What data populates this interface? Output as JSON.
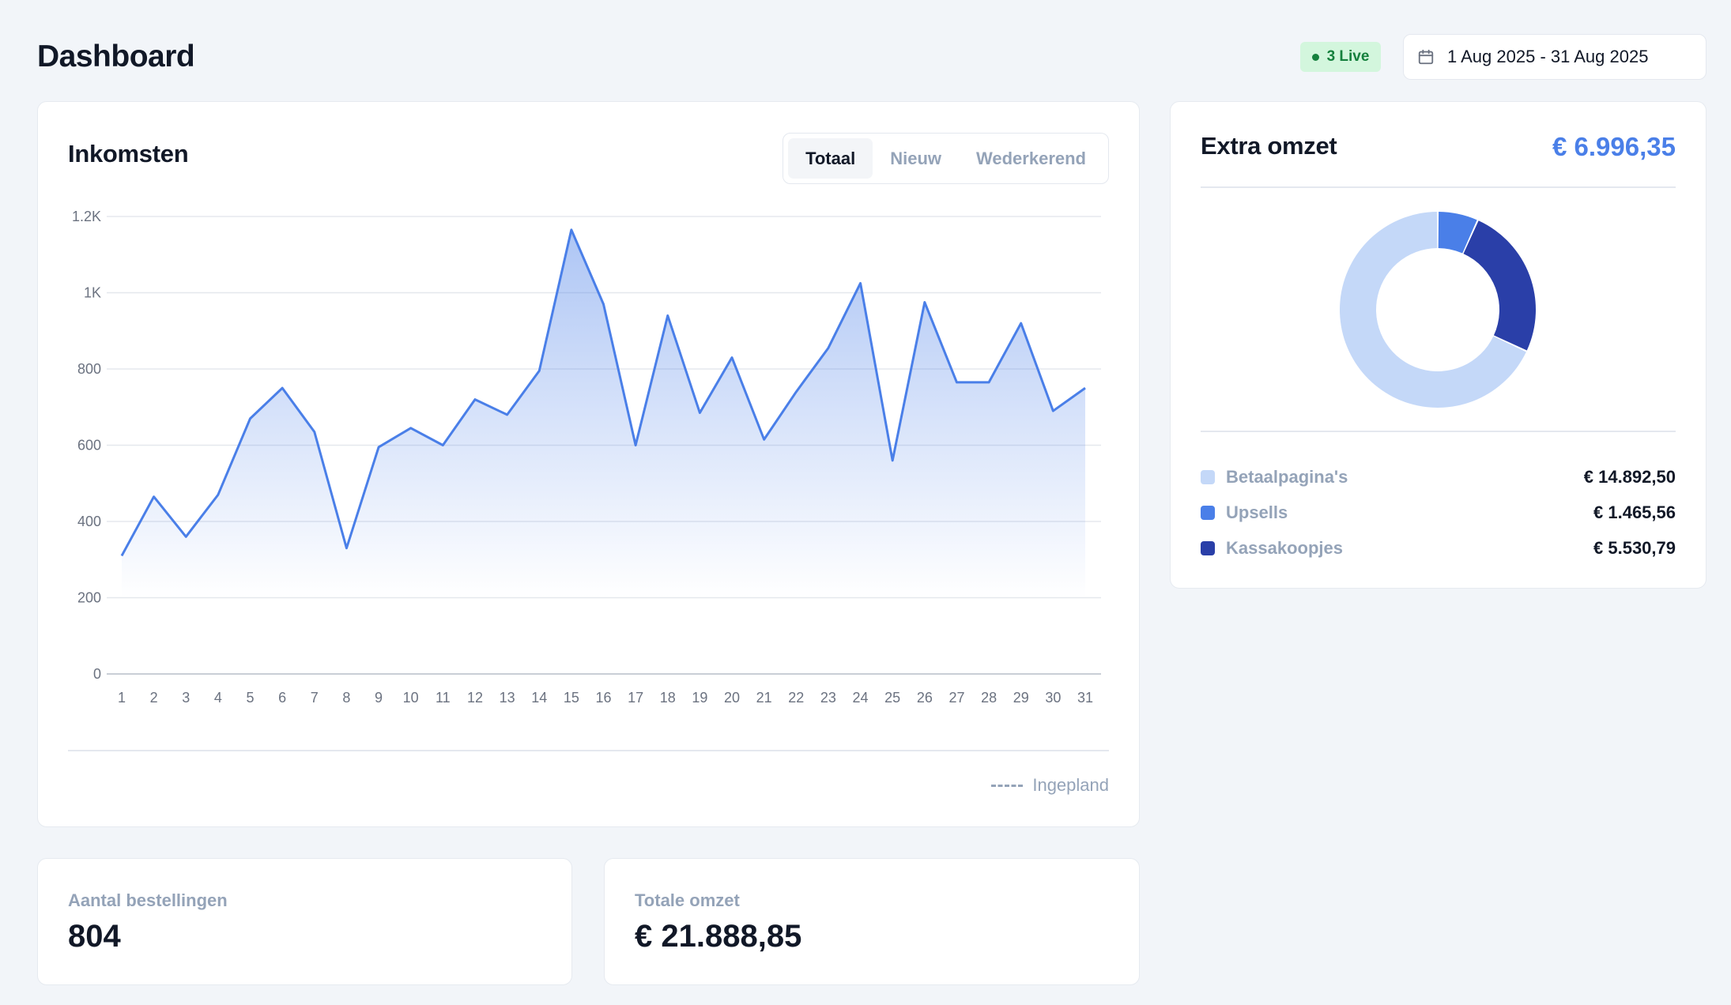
{
  "header": {
    "title": "Dashboard",
    "live_badge": "3 Live",
    "date_range": "1 Aug 2025 - 31 Aug 2025"
  },
  "income": {
    "title": "Inkomsten",
    "tabs": [
      "Totaal",
      "Nieuw",
      "Wederkerend"
    ],
    "active_tab": "Totaal",
    "legend_planned": "Ingepland"
  },
  "chart_data": [
    {
      "type": "area",
      "title": "Inkomsten",
      "x": [
        1,
        2,
        3,
        4,
        5,
        6,
        7,
        8,
        9,
        10,
        11,
        12,
        13,
        14,
        15,
        16,
        17,
        18,
        19,
        20,
        21,
        22,
        23,
        24,
        25,
        26,
        27,
        28,
        29,
        30,
        31
      ],
      "series": [
        {
          "values": [
            310,
            465,
            360,
            470,
            670,
            750,
            635,
            330,
            595,
            645,
            600,
            720,
            680,
            795,
            1165,
            970,
            600,
            940,
            685,
            830,
            615,
            740,
            855,
            1025,
            560,
            975,
            765,
            765,
            920,
            690,
            750
          ]
        }
      ],
      "yticks": [
        "0",
        "200",
        "400",
        "600",
        "800",
        "1K",
        "1.2K"
      ],
      "ylim": [
        0,
        1200
      ],
      "grid": true,
      "color": "#4a7fe8"
    },
    {
      "type": "pie",
      "title": "Extra omzet",
      "categories": [
        "Betaalpagina's",
        "Upsells",
        "Kassakoopjes"
      ],
      "values": [
        14892.5,
        1465.56,
        5530.79
      ],
      "colors": [
        "#c4d8f8",
        "#4a7fe8",
        "#2a3fa8"
      ]
    }
  ],
  "extra": {
    "title": "Extra omzet",
    "total": "€ 6.996,35",
    "legend": [
      {
        "label": "Betaalpagina's",
        "value": "€ 14.892,50",
        "color": "#c4d8f8"
      },
      {
        "label": "Upsells",
        "value": "€ 1.465,56",
        "color": "#4a7fe8"
      },
      {
        "label": "Kassakoopjes",
        "value": "€ 5.530,79",
        "color": "#2a3fa8"
      }
    ]
  },
  "stats": {
    "orders_label": "Aantal bestellingen",
    "orders_value": "804",
    "revenue_label": "Totale omzet",
    "revenue_value": "€ 21.888,85"
  },
  "icons": {
    "calendar": "calendar-icon",
    "live": "live-dot-icon"
  }
}
